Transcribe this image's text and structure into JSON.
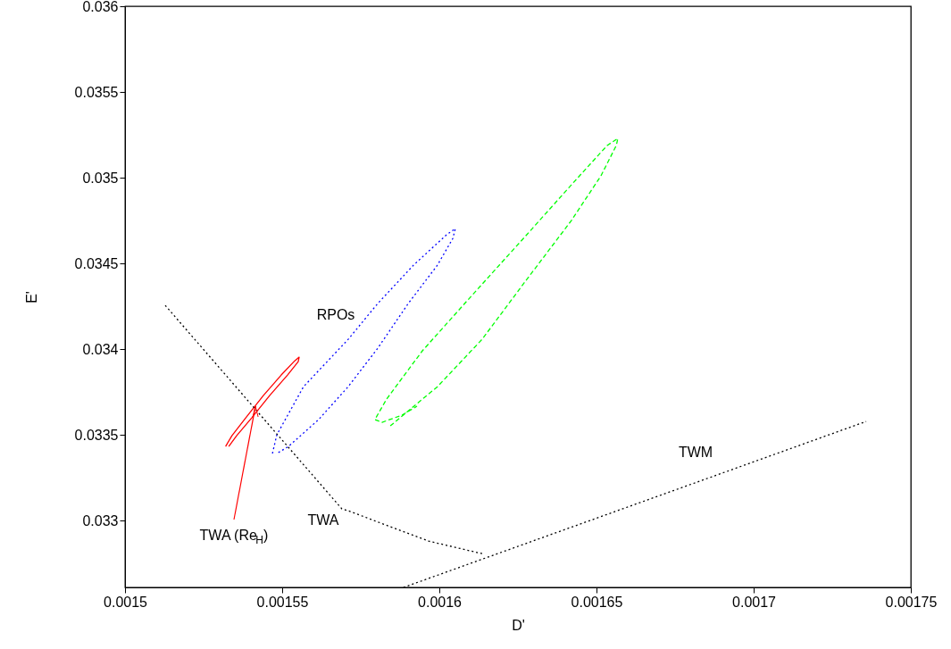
{
  "chart_data": {
    "type": "line",
    "xlabel": "D'",
    "ylabel": "E'",
    "xlim": [
      0.0015,
      0.00175
    ],
    "ylim": [
      0.03261,
      0.036
    ],
    "xticks": [
      0.0015,
      0.00155,
      0.0016,
      0.00165,
      0.0017,
      0.00175
    ],
    "yticks": [
      0.033,
      0.0335,
      0.034,
      0.0345,
      0.035,
      0.0355,
      0.036
    ],
    "grid": false,
    "marker": "none",
    "series": [
      {
        "color": "#ff0000",
        "line_style": "solid",
        "x": [
          0.001532,
          0.001534,
          0.0015384,
          0.001544,
          0.0015497,
          0.001554,
          0.0015554,
          0.0015551,
          0.0015517,
          0.001546,
          0.0015403,
          0.0015355,
          0.001533
        ],
        "values": [
          0.033432,
          0.033495,
          0.033599,
          0.033729,
          0.033849,
          0.033932,
          0.033953,
          0.033927,
          0.033849,
          0.033729,
          0.033599,
          0.033495,
          0.033432
        ]
      },
      {
        "color": "#0000ff",
        "line_style": "dotted",
        "x": [
          0.0015469,
          0.0015483,
          0.0015568,
          0.001571,
          0.0015804,
          0.0015918,
          0.0016023,
          0.0016051,
          0.0016043,
          0.0015994,
          0.0015901,
          0.0015804,
          0.001571,
          0.0015616,
          0.001552,
          0.0015483
        ],
        "values": [
          0.033391,
          0.0335,
          0.033781,
          0.034057,
          0.034266,
          0.03449,
          0.034667,
          0.034703,
          0.034646,
          0.03449,
          0.034266,
          0.034005,
          0.033781,
          0.033589,
          0.033432,
          0.033391
        ]
      },
      {
        "color": "#00ff00",
        "line_style": "dashed",
        "x": [
          0.0015844,
          0.0015929,
          0.0015994,
          0.0016136,
          0.0016278,
          0.001642,
          0.0016514,
          0.0016563,
          0.0016568,
          0.0016534,
          0.001642,
          0.0016278,
          0.0016088,
          0.0015946,
          0.0015832,
          0.0015795,
          0.0015818,
          0.0015881,
          0.0015929
        ],
        "values": [
          0.033552,
          0.033682,
          0.033781,
          0.034057,
          0.034406,
          0.03475,
          0.03501,
          0.035188,
          0.035229,
          0.035188,
          0.034958,
          0.034667,
          0.034281,
          0.03399,
          0.033708,
          0.033589,
          0.033573,
          0.033615,
          0.033667
        ]
      },
      {
        "color": "#000000",
        "line_style": "dotted",
        "x": [
          0.0015128,
          0.001569,
          0.001571,
          0.0015966,
          0.0016136
        ],
        "values": [
          0.034255,
          0.033068,
          0.033057,
          0.03288,
          0.032807
        ]
      },
      {
        "color": "#000000",
        "line_style": "dotted",
        "x": [
          0.0015886,
          0.0017358
        ],
        "values": [
          0.03261,
          0.033578
        ]
      }
    ],
    "annotations": [
      "RPOs",
      "TWA",
      "TWM",
      {
        "text": "TWA (Re$_{H}$)",
        "x": 0.0015415,
        "y": 0.033667
      }
    ]
  }
}
